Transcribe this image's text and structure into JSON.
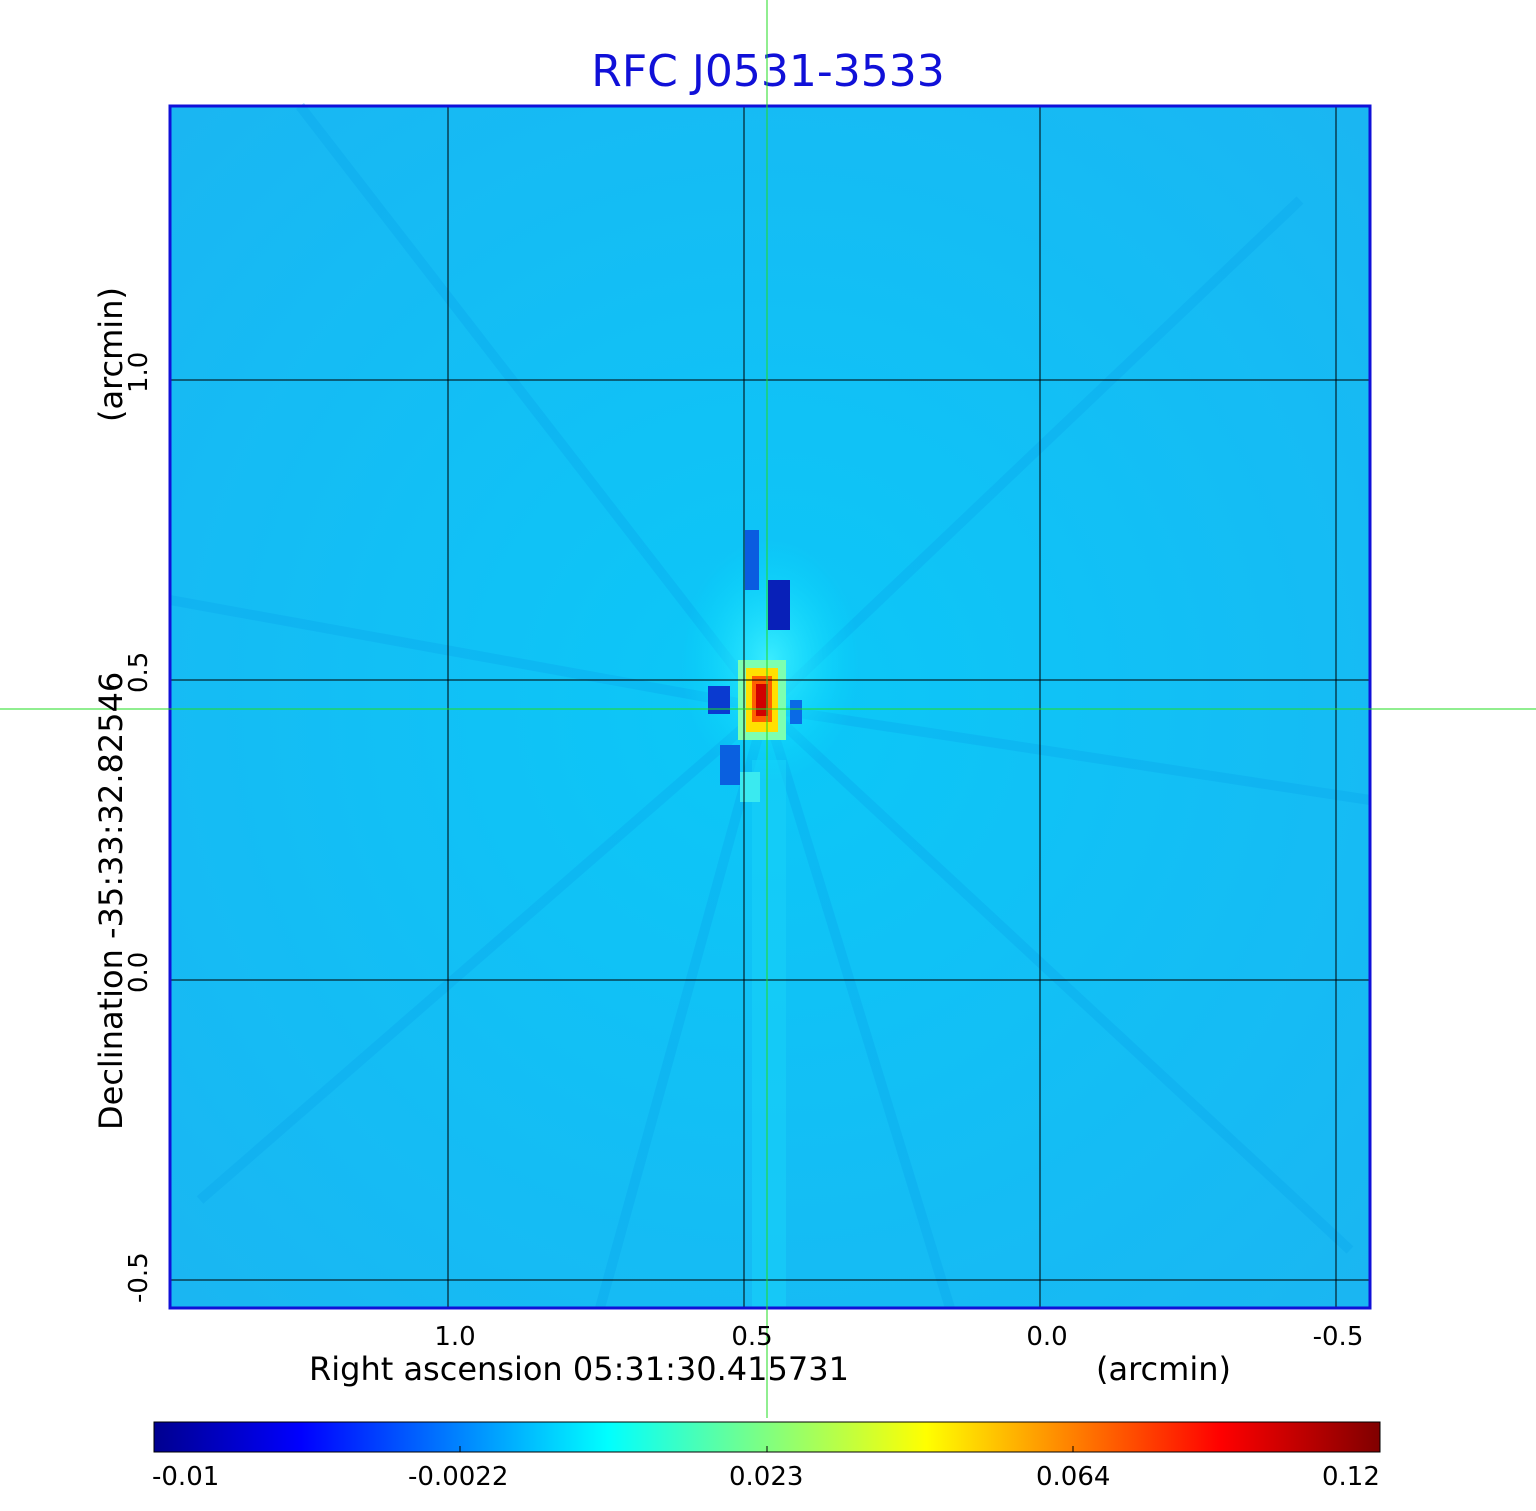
{
  "title": "RFC J0531-3533",
  "x_axis": {
    "label": "Right ascension  05:31:30.415731",
    "unit": "(arcmin)",
    "ticks": [
      "1.0",
      "0.5",
      "0.0",
      "-0.5"
    ]
  },
  "y_axis": {
    "label": "Declination  -35:33:32.82546",
    "unit": "(arcmin)",
    "ticks": [
      "1.0",
      "0.5",
      "0.0",
      "-0.5"
    ]
  },
  "colorbar": {
    "ticks": [
      "-0.01",
      "-0.0022",
      "0.023",
      "0.064",
      "0.12"
    ]
  },
  "colors": {
    "title": "#1010d8",
    "frame": "#1010d8",
    "background_field": "#1ab8f5",
    "crosshair": "#22dd22"
  }
}
